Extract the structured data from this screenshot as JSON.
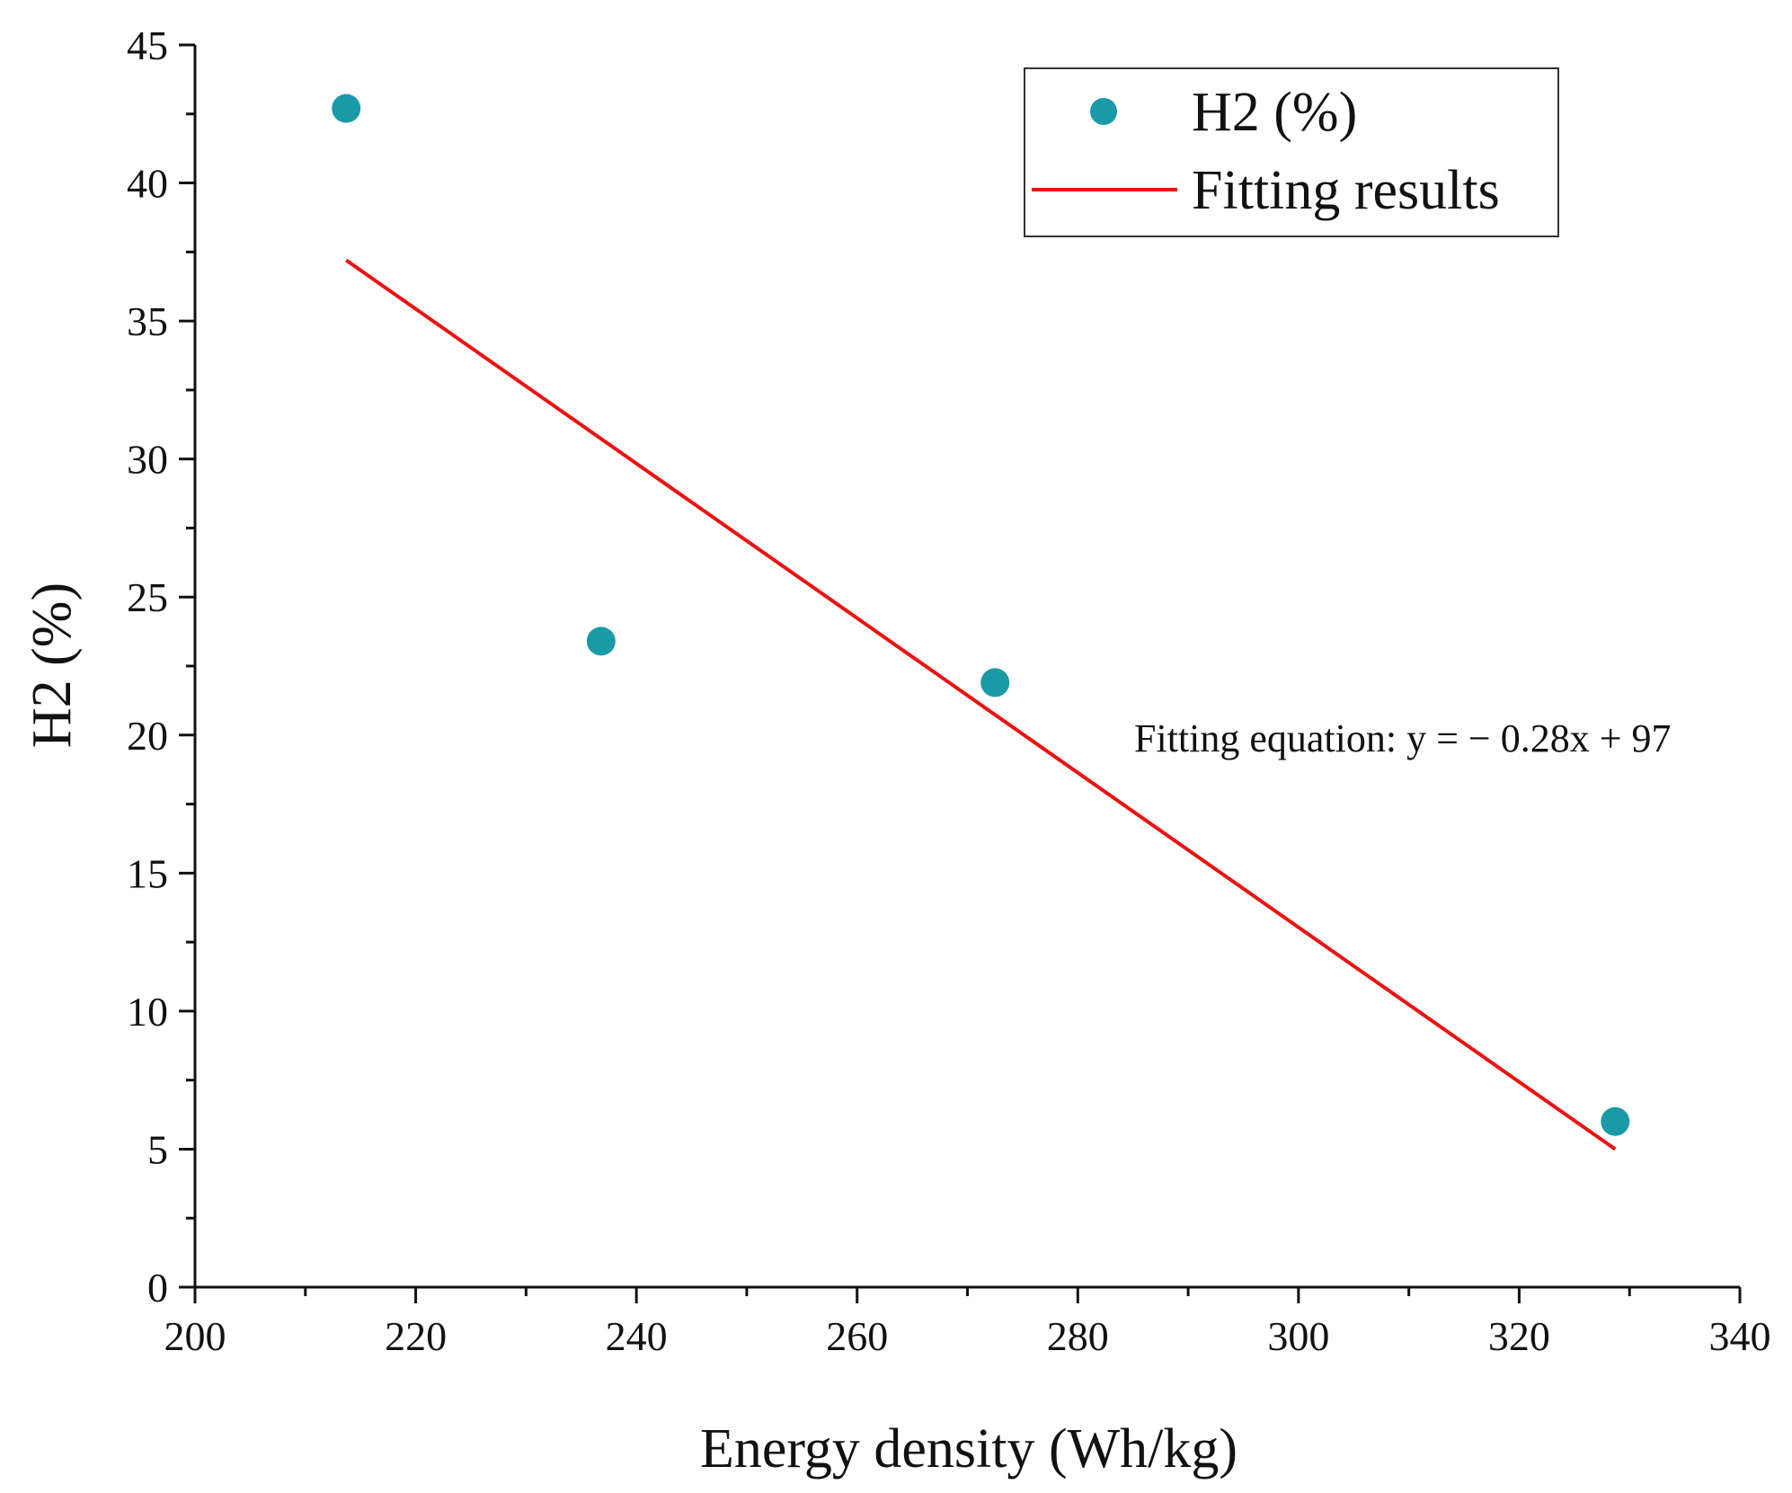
{
  "chart_data": {
    "type": "scatter",
    "xlabel": "Energy density (Wh/kg)",
    "ylabel": "H2 (%)",
    "xlim": [
      200,
      340
    ],
    "ylim": [
      0,
      45
    ],
    "x_ticks": [
      200,
      220,
      240,
      260,
      280,
      300,
      320,
      340
    ],
    "y_ticks": [
      0,
      5,
      10,
      15,
      20,
      25,
      30,
      35,
      40,
      45
    ],
    "grid": false,
    "legend_position": "top-right",
    "colors": {
      "points": "#1a9aa6",
      "fit": "#ee1111"
    },
    "series": [
      {
        "name": "H2 (%)",
        "type": "scatter",
        "x": [
          213.7,
          236.8,
          272.5,
          328.7
        ],
        "y": [
          42.7,
          23.4,
          21.9,
          6.0
        ]
      },
      {
        "name": "Fitting results",
        "type": "line",
        "x": [
          213.7,
          328.7
        ],
        "y": [
          37.2,
          5.0
        ]
      }
    ],
    "annotations": [
      "Fitting equation: y = − 0.28x + 97"
    ]
  }
}
